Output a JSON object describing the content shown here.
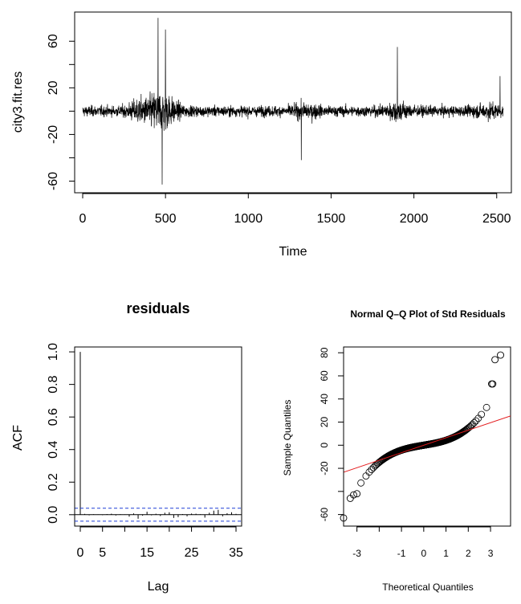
{
  "chart_data": [
    {
      "type": "line",
      "title": "",
      "xlabel": "Time",
      "ylabel": "city3.fit.res",
      "xlim": [
        0,
        2540
      ],
      "ylim": [
        -70,
        85
      ],
      "x_ticks": [
        "0",
        "500",
        "1000",
        "1500",
        "2000",
        "2500"
      ],
      "y_ticks": [
        "60",
        "20",
        "-20",
        "-60"
      ],
      "series": [
        {
          "values_note_x": [
            0,
            2540
          ],
          "peaks": [
            {
              "x": 455,
              "y": 80
            },
            {
              "x": 480,
              "y": -63
            },
            {
              "x": 500,
              "y": 70
            },
            {
              "x": 1320,
              "y": -42
            },
            {
              "x": 1900,
              "y": 55
            },
            {
              "x": 2520,
              "y": 30
            }
          ]
        }
      ]
    },
    {
      "type": "bar",
      "title": "residuals",
      "xlabel": "Lag",
      "ylabel": "ACF",
      "xlim": [
        0,
        35
      ],
      "ylim": [
        -0.07,
        1.03
      ],
      "x_ticks": [
        "0",
        "5",
        "15",
        "25",
        "35"
      ],
      "y_ticks": [
        "0.0",
        "0.2",
        "0.4",
        "0.6",
        "0.8",
        "1.0"
      ],
      "confidence_band": 0.04,
      "lags": [
        0,
        1,
        2,
        3,
        4,
        5,
        6,
        7,
        8,
        9,
        10,
        11,
        12,
        13,
        14,
        15,
        16,
        17,
        18,
        19,
        20,
        21,
        22,
        23,
        24,
        25,
        26,
        27,
        28,
        29,
        30,
        31,
        32,
        33,
        34,
        35
      ],
      "values": [
        1.0,
        0.005,
        -0.004,
        0.003,
        0.002,
        -0.003,
        0.004,
        0.006,
        -0.005,
        0.003,
        0.002,
        -0.012,
        0.008,
        -0.025,
        -0.006,
        0.018,
        -0.004,
        0.006,
        -0.008,
        0.012,
        0.015,
        -0.02,
        -0.015,
        0.004,
        -0.01,
        0.007,
        0.006,
        0.003,
        -0.018,
        0.012,
        0.025,
        0.03,
        -0.01,
        0.009,
        0.015,
        0.005
      ]
    },
    {
      "type": "scatter",
      "title": "Normal Q–Q Plot of Std Residuals",
      "xlabel": "Theoretical Quantiles",
      "ylabel": "Sample Quantiles",
      "xlim": [
        -3.6,
        3.9
      ],
      "ylim": [
        -70,
        85
      ],
      "x_ticks": [
        "-3",
        "-1",
        "0",
        "1",
        "2",
        "3"
      ],
      "y_ticks": [
        "80",
        "60",
        "40",
        "20",
        "0",
        "-20",
        "-60"
      ],
      "reference_line": {
        "intercept": 0,
        "slope": 6.5,
        "color": "#e31a1c"
      },
      "outliers": [
        [
          -3.6,
          -63
        ],
        [
          -3.3,
          -46
        ],
        [
          -3.15,
          -43
        ],
        [
          -3.0,
          -42
        ],
        [
          3.2,
          74
        ],
        [
          3.45,
          78
        ],
        [
          3.05,
          53
        ],
        [
          3.1,
          53
        ]
      ]
    }
  ]
}
